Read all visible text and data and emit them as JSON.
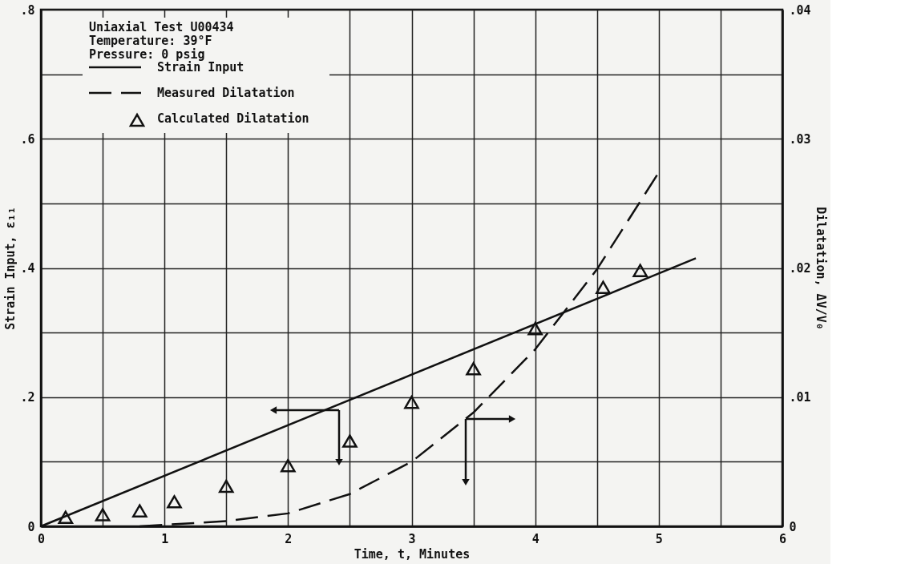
{
  "chart_data": {
    "type": "line",
    "xlabel": "Time, t, Minutes",
    "ylabel": "Strain Input, ε₁₁",
    "y2label": "Dilatation, ΔV/V₀",
    "annotations": [
      "Uniaxial Test U00434",
      "Temperature: 39°F",
      "Pressure:  0 psig"
    ],
    "xlim": [
      0,
      6
    ],
    "ylim": [
      0,
      0.8
    ],
    "y2lim": [
      0,
      0.04
    ],
    "xticks": [
      0,
      {
        "value": 0.5,
        "label": null
      },
      1,
      {
        "value": 1.5,
        "label": null
      },
      2,
      {
        "value": 2.5,
        "label": null
      },
      3,
      {
        "value": 3.5,
        "label": null
      },
      4,
      {
        "value": 4.5,
        "label": null
      },
      5,
      {
        "value": 5.5,
        "label": null
      },
      6
    ],
    "yticks": [
      0,
      {
        "value": 0.1,
        "label": null
      },
      {
        "value": 0.2,
        "label": ".2"
      },
      {
        "value": 0.3,
        "label": null
      },
      {
        "value": 0.4,
        "label": ".4"
      },
      {
        "value": 0.5,
        "label": null
      },
      {
        "value": 0.6,
        "label": ".6"
      },
      {
        "value": 0.7,
        "label": null
      },
      {
        "value": 0.8,
        "label": ".8"
      }
    ],
    "y2ticks": [
      0,
      {
        "value": 0.01,
        "label": ".01"
      },
      {
        "value": 0.02,
        "label": ".02"
      },
      {
        "value": 0.03,
        "label": ".03"
      },
      {
        "value": 0.04,
        "label": ".04"
      }
    ],
    "grid": true,
    "legend": "top left",
    "series": [
      {
        "name": "Strain Input",
        "type": "line",
        "line_style": "solid",
        "color": "#111111",
        "x": [
          0,
          5.3
        ],
        "values": [
          0,
          0.415
        ]
      },
      {
        "name": "Measured Dilatation",
        "type": "line",
        "line_style": "dashed",
        "axis": "y2",
        "color": "#111111",
        "x": [
          0.8,
          1.5,
          2.0,
          2.5,
          3.0,
          3.5,
          4.0,
          4.5,
          5.0
        ],
        "values": [
          0,
          0.0004,
          0.001,
          0.0025,
          0.005,
          0.0088,
          0.0137,
          0.0199,
          0.0274
        ]
      },
      {
        "name": "Calculated Dilatation",
        "type": "scatter",
        "marker": "triangle",
        "axis": "y2",
        "color": "#111111",
        "x": [
          0.2,
          0.5,
          0.8,
          1.08,
          1.5,
          2.0,
          2.5,
          3.0,
          3.5,
          4.0,
          4.55,
          4.85
        ],
        "values": [
          0.0007,
          0.0009,
          0.0012,
          0.0019,
          0.0031,
          0.0047,
          0.0066,
          0.0096,
          0.0122,
          0.0153,
          0.0185,
          0.0198
        ]
      }
    ]
  }
}
